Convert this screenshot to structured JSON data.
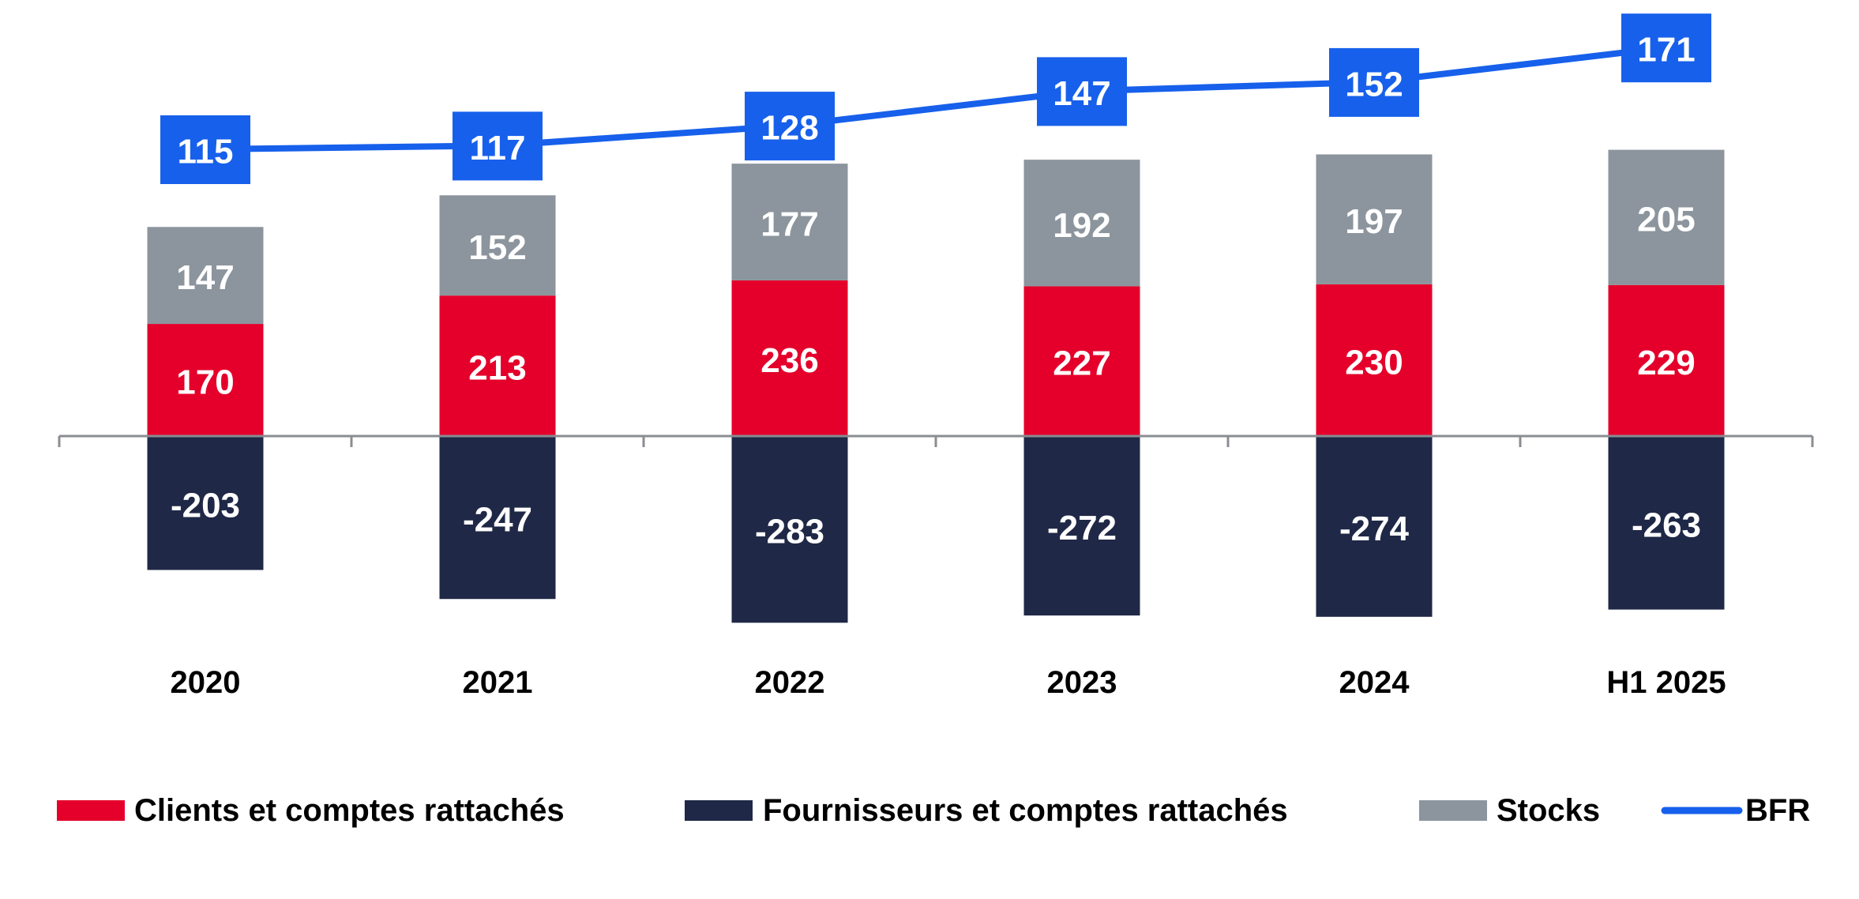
{
  "chart_data": {
    "type": "bar",
    "stacked": true,
    "title": "",
    "categories": [
      "2020",
      "2021",
      "2022",
      "2023",
      "2024",
      "H1 2025"
    ],
    "series": [
      {
        "name": "Clients et comptes rattachés",
        "type": "bar",
        "color": "#E4002B",
        "values": [
          170,
          213,
          236,
          227,
          230,
          229
        ]
      },
      {
        "name": "Fournisseurs et comptes rattachés",
        "type": "bar",
        "color": "#1F2846",
        "values": [
          -203,
          -247,
          -283,
          -272,
          -274,
          -263
        ]
      },
      {
        "name": "Stocks",
        "type": "bar",
        "color": "#8C959D",
        "values": [
          147,
          152,
          177,
          192,
          197,
          205
        ]
      },
      {
        "name": "BFR",
        "type": "line",
        "color": "#1760EB",
        "values": [
          115,
          117,
          128,
          147,
          152,
          171
        ]
      }
    ],
    "legend_position": "bottom",
    "grid": false,
    "axis_color": "#8A8D91"
  }
}
